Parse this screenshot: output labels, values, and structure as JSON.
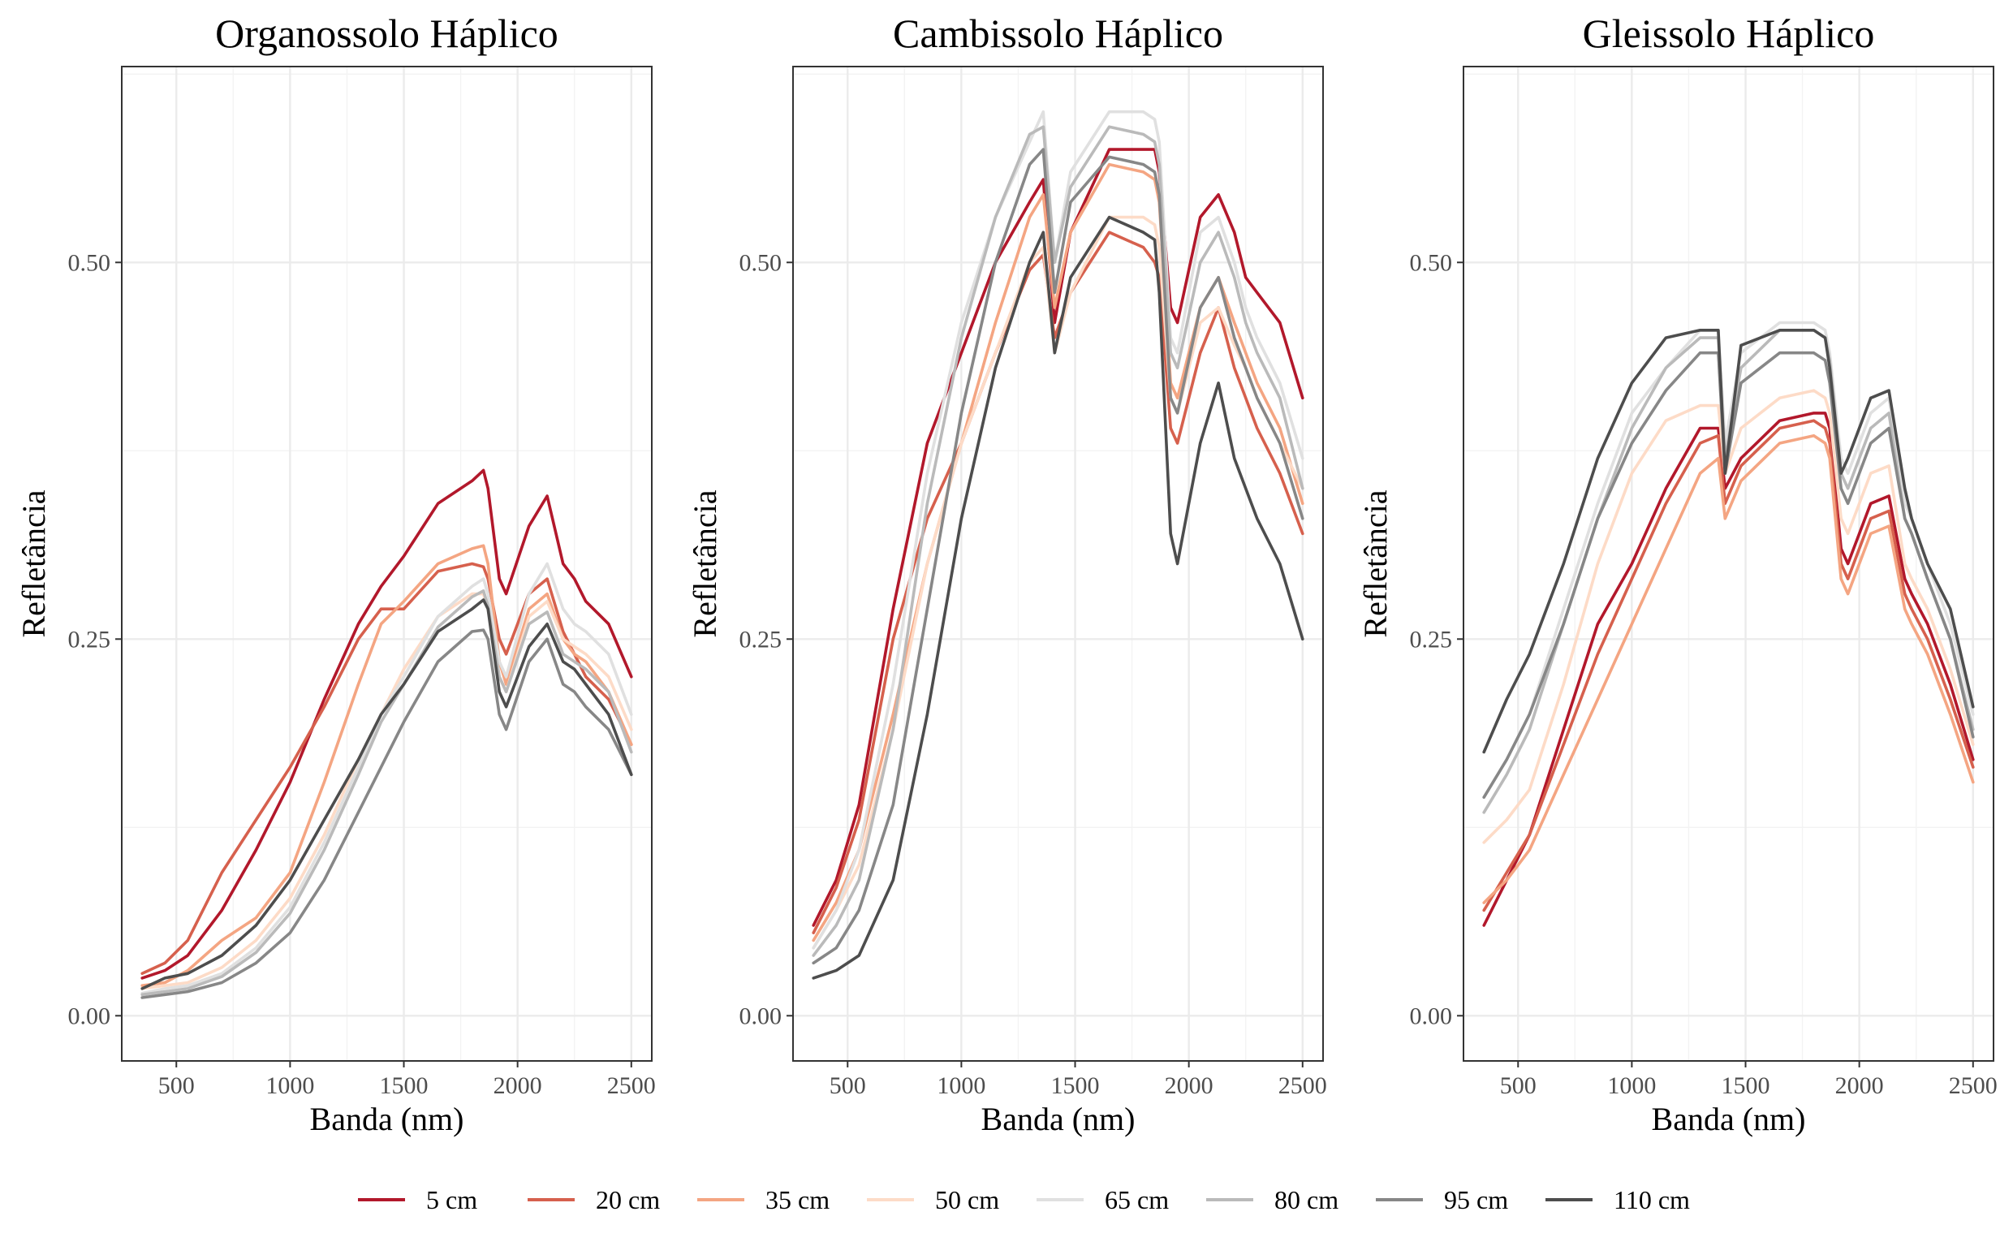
{
  "colors": {
    "5 cm": "#b2182b",
    "20 cm": "#d6604d",
    "35 cm": "#f4a582",
    "50 cm": "#fddbc7",
    "65 cm": "#e0e0e0",
    "80 cm": "#bababa",
    "95 cm": "#878787",
    "110 cm": "#4d4d4d"
  },
  "legend": {
    "position": "bottom",
    "items": [
      "5 cm",
      "20 cm",
      "35 cm",
      "50 cm",
      "65 cm",
      "80 cm",
      "95 cm",
      "110 cm"
    ]
  },
  "chart_data": [
    {
      "type": "line",
      "title": "Organossolo Háplico",
      "xlabel": "Banda (nm)",
      "ylabel": "Refletância",
      "xlim": [
        260,
        2590
      ],
      "ylim": [
        -0.03,
        0.63
      ],
      "xticks": [
        500,
        1000,
        1500,
        2000,
        2500
      ],
      "xtick_labels": [
        "500",
        "1000",
        "1500",
        "2000",
        "2500"
      ],
      "yticks": [
        0.0,
        0.25,
        0.5
      ],
      "ytick_labels": [
        "0.00",
        "0.25",
        "0.50"
      ],
      "grid": true,
      "x": [
        350,
        450,
        550,
        700,
        850,
        1000,
        1150,
        1300,
        1400,
        1500,
        1650,
        1800,
        1850,
        1870,
        1920,
        1950,
        2050,
        2130,
        2200,
        2250,
        2300,
        2400,
        2500
      ],
      "series": [
        {
          "name": "5 cm",
          "values": [
            0.025,
            0.03,
            0.04,
            0.07,
            0.11,
            0.155,
            0.21,
            0.26,
            0.285,
            0.305,
            0.34,
            0.355,
            0.362,
            0.35,
            0.29,
            0.28,
            0.325,
            0.345,
            0.3,
            0.29,
            0.275,
            0.26,
            0.225
          ]
        },
        {
          "name": "20 cm",
          "values": [
            0.028,
            0.035,
            0.05,
            0.095,
            0.13,
            0.165,
            0.205,
            0.25,
            0.27,
            0.27,
            0.295,
            0.3,
            0.298,
            0.29,
            0.25,
            0.24,
            0.28,
            0.29,
            0.255,
            0.24,
            0.225,
            0.21,
            0.18
          ]
        },
        {
          "name": "35 cm",
          "values": [
            0.02,
            0.022,
            0.03,
            0.05,
            0.065,
            0.095,
            0.155,
            0.22,
            0.26,
            0.275,
            0.3,
            0.31,
            0.312,
            0.3,
            0.235,
            0.22,
            0.27,
            0.28,
            0.25,
            0.24,
            0.235,
            0.215,
            0.18
          ]
        },
        {
          "name": "50 cm",
          "values": [
            0.018,
            0.02,
            0.022,
            0.032,
            0.05,
            0.078,
            0.12,
            0.17,
            0.2,
            0.23,
            0.265,
            0.28,
            0.28,
            0.27,
            0.225,
            0.215,
            0.265,
            0.275,
            0.25,
            0.245,
            0.24,
            0.225,
            0.19
          ]
        },
        {
          "name": "65 cm",
          "values": [
            0.015,
            0.018,
            0.02,
            0.028,
            0.045,
            0.072,
            0.115,
            0.165,
            0.2,
            0.225,
            0.265,
            0.285,
            0.29,
            0.28,
            0.235,
            0.225,
            0.28,
            0.3,
            0.27,
            0.26,
            0.255,
            0.24,
            0.2
          ]
        },
        {
          "name": "80 cm",
          "values": [
            0.014,
            0.016,
            0.018,
            0.026,
            0.042,
            0.068,
            0.11,
            0.16,
            0.195,
            0.22,
            0.258,
            0.278,
            0.282,
            0.272,
            0.225,
            0.215,
            0.26,
            0.268,
            0.24,
            0.235,
            0.23,
            0.215,
            0.175
          ]
        },
        {
          "name": "95 cm",
          "values": [
            0.012,
            0.014,
            0.016,
            0.022,
            0.035,
            0.055,
            0.09,
            0.135,
            0.165,
            0.195,
            0.235,
            0.255,
            0.256,
            0.25,
            0.2,
            0.19,
            0.235,
            0.25,
            0.22,
            0.215,
            0.205,
            0.19,
            0.16
          ]
        },
        {
          "name": "110 cm",
          "values": [
            0.018,
            0.025,
            0.028,
            0.04,
            0.06,
            0.09,
            0.13,
            0.17,
            0.2,
            0.22,
            0.255,
            0.27,
            0.276,
            0.27,
            0.215,
            0.205,
            0.245,
            0.26,
            0.235,
            0.23,
            0.22,
            0.2,
            0.16
          ]
        }
      ]
    },
    {
      "type": "line",
      "title": "Cambissolo Háplico",
      "xlabel": "Banda (nm)",
      "ylabel": "Refletância",
      "xlim": [
        260,
        2590
      ],
      "ylim": [
        -0.03,
        0.63
      ],
      "xticks": [
        500,
        1000,
        1500,
        2000,
        2500
      ],
      "xtick_labels": [
        "500",
        "1000",
        "1500",
        "2000",
        "2500"
      ],
      "yticks": [
        0.0,
        0.25,
        0.5
      ],
      "ytick_labels": [
        "0.00",
        "0.25",
        "0.50"
      ],
      "grid": true,
      "x": [
        350,
        450,
        550,
        700,
        850,
        1000,
        1150,
        1300,
        1360,
        1410,
        1480,
        1650,
        1800,
        1850,
        1870,
        1920,
        1950,
        2050,
        2130,
        2200,
        2250,
        2300,
        2400,
        2500
      ],
      "series": [
        {
          "name": "5 cm",
          "values": [
            0.06,
            0.09,
            0.14,
            0.27,
            0.38,
            0.44,
            0.5,
            0.54,
            0.555,
            0.46,
            0.52,
            0.575,
            0.575,
            0.575,
            0.56,
            0.47,
            0.46,
            0.53,
            0.545,
            0.52,
            0.49,
            0.48,
            0.46,
            0.41
          ]
        },
        {
          "name": "20 cm",
          "values": [
            0.055,
            0.085,
            0.13,
            0.25,
            0.33,
            0.38,
            0.44,
            0.495,
            0.505,
            0.45,
            0.48,
            0.52,
            0.51,
            0.5,
            0.49,
            0.39,
            0.38,
            0.44,
            0.47,
            0.43,
            0.41,
            0.39,
            0.36,
            0.32
          ]
        },
        {
          "name": "35 cm",
          "values": [
            0.05,
            0.075,
            0.11,
            0.2,
            0.3,
            0.38,
            0.46,
            0.53,
            0.545,
            0.47,
            0.52,
            0.565,
            0.56,
            0.555,
            0.54,
            0.42,
            0.41,
            0.47,
            0.49,
            0.46,
            0.44,
            0.42,
            0.39,
            0.34
          ]
        },
        {
          "name": "50 cm",
          "values": [
            0.045,
            0.07,
            0.1,
            0.19,
            0.3,
            0.38,
            0.44,
            0.5,
            0.51,
            0.44,
            0.48,
            0.53,
            0.53,
            0.525,
            0.51,
            0.41,
            0.4,
            0.46,
            0.47,
            0.445,
            0.43,
            0.41,
            0.38,
            0.35
          ]
        },
        {
          "name": "65 cm",
          "values": [
            0.045,
            0.07,
            0.11,
            0.22,
            0.36,
            0.46,
            0.53,
            0.58,
            0.6,
            0.5,
            0.56,
            0.6,
            0.6,
            0.595,
            0.58,
            0.45,
            0.44,
            0.52,
            0.53,
            0.5,
            0.47,
            0.45,
            0.42,
            0.37
          ]
        },
        {
          "name": "80 cm",
          "values": [
            0.04,
            0.06,
            0.09,
            0.19,
            0.34,
            0.45,
            0.53,
            0.585,
            0.59,
            0.5,
            0.55,
            0.59,
            0.585,
            0.58,
            0.565,
            0.44,
            0.43,
            0.5,
            0.52,
            0.49,
            0.46,
            0.44,
            0.41,
            0.35
          ]
        },
        {
          "name": "95 cm",
          "values": [
            0.035,
            0.045,
            0.07,
            0.14,
            0.27,
            0.4,
            0.5,
            0.565,
            0.575,
            0.48,
            0.54,
            0.57,
            0.565,
            0.56,
            0.545,
            0.41,
            0.4,
            0.47,
            0.49,
            0.45,
            0.43,
            0.41,
            0.38,
            0.33
          ]
        },
        {
          "name": "110 cm",
          "values": [
            0.025,
            0.03,
            0.04,
            0.09,
            0.2,
            0.33,
            0.43,
            0.5,
            0.52,
            0.44,
            0.49,
            0.53,
            0.52,
            0.515,
            0.48,
            0.32,
            0.3,
            0.38,
            0.42,
            0.37,
            0.35,
            0.33,
            0.3,
            0.25
          ]
        }
      ]
    },
    {
      "type": "line",
      "title": "Gleissolo Háplico",
      "xlabel": "Banda (nm)",
      "ylabel": "Refletância",
      "xlim": [
        260,
        2590
      ],
      "ylim": [
        -0.03,
        0.63
      ],
      "xticks": [
        500,
        1000,
        1500,
        2000,
        2500
      ],
      "xtick_labels": [
        "500",
        "1000",
        "1500",
        "2000",
        "2500"
      ],
      "yticks": [
        0.0,
        0.25,
        0.5
      ],
      "ytick_labels": [
        "0.00",
        "0.25",
        "0.50"
      ],
      "grid": true,
      "x": [
        350,
        450,
        550,
        700,
        850,
        1000,
        1150,
        1300,
        1380,
        1410,
        1480,
        1650,
        1800,
        1850,
        1870,
        1920,
        1950,
        2050,
        2130,
        2200,
        2230,
        2300,
        2400,
        2500
      ],
      "series": [
        {
          "name": "5 cm",
          "values": [
            0.06,
            0.09,
            0.12,
            0.19,
            0.26,
            0.3,
            0.35,
            0.39,
            0.39,
            0.35,
            0.37,
            0.395,
            0.4,
            0.4,
            0.39,
            0.31,
            0.3,
            0.34,
            0.345,
            0.29,
            0.28,
            0.26,
            0.22,
            0.17
          ]
        },
        {
          "name": "20 cm",
          "values": [
            0.07,
            0.095,
            0.12,
            0.18,
            0.24,
            0.29,
            0.34,
            0.38,
            0.385,
            0.34,
            0.365,
            0.39,
            0.395,
            0.39,
            0.38,
            0.3,
            0.29,
            0.33,
            0.335,
            0.28,
            0.27,
            0.25,
            0.21,
            0.165
          ]
        },
        {
          "name": "35 cm",
          "values": [
            0.075,
            0.09,
            0.11,
            0.16,
            0.21,
            0.26,
            0.31,
            0.36,
            0.37,
            0.33,
            0.355,
            0.38,
            0.385,
            0.38,
            0.37,
            0.29,
            0.28,
            0.32,
            0.325,
            0.27,
            0.26,
            0.24,
            0.2,
            0.155
          ]
        },
        {
          "name": "50 cm",
          "values": [
            0.115,
            0.13,
            0.15,
            0.22,
            0.3,
            0.36,
            0.395,
            0.405,
            0.405,
            0.36,
            0.39,
            0.41,
            0.415,
            0.41,
            0.4,
            0.33,
            0.32,
            0.36,
            0.365,
            0.3,
            0.29,
            0.27,
            0.23,
            0.18
          ]
        },
        {
          "name": "65 cm",
          "values": [
            0.145,
            0.17,
            0.2,
            0.27,
            0.34,
            0.4,
            0.43,
            0.455,
            0.455,
            0.38,
            0.44,
            0.46,
            0.46,
            0.455,
            0.44,
            0.37,
            0.36,
            0.4,
            0.41,
            0.34,
            0.33,
            0.3,
            0.26,
            0.2
          ]
        },
        {
          "name": "80 cm",
          "values": [
            0.135,
            0.16,
            0.19,
            0.26,
            0.33,
            0.39,
            0.43,
            0.45,
            0.45,
            0.37,
            0.43,
            0.455,
            0.455,
            0.45,
            0.435,
            0.36,
            0.35,
            0.39,
            0.4,
            0.33,
            0.32,
            0.29,
            0.25,
            0.19
          ]
        },
        {
          "name": "95 cm",
          "values": [
            0.145,
            0.17,
            0.2,
            0.26,
            0.33,
            0.38,
            0.415,
            0.44,
            0.44,
            0.36,
            0.42,
            0.44,
            0.44,
            0.435,
            0.42,
            0.35,
            0.34,
            0.38,
            0.39,
            0.33,
            0.32,
            0.29,
            0.25,
            0.185
          ]
        },
        {
          "name": "110 cm",
          "values": [
            0.175,
            0.21,
            0.24,
            0.3,
            0.37,
            0.42,
            0.45,
            0.455,
            0.455,
            0.36,
            0.445,
            0.455,
            0.455,
            0.45,
            0.43,
            0.36,
            0.37,
            0.41,
            0.415,
            0.35,
            0.33,
            0.3,
            0.27,
            0.205
          ]
        }
      ]
    }
  ]
}
